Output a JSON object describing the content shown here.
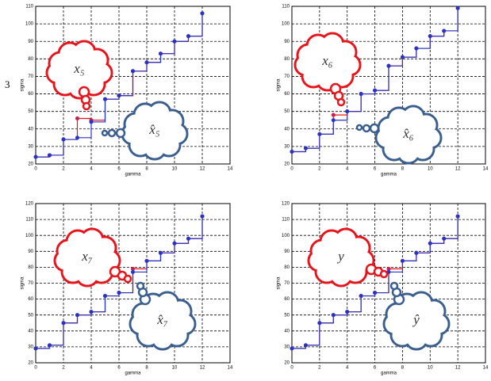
{
  "side_label": "3",
  "chart_data": [
    {
      "type": "step",
      "xlabel": "gamma",
      "ylabel": "sigma",
      "xlim": [
        0,
        14
      ],
      "ylim": [
        20,
        110
      ],
      "xticks": [
        0,
        2,
        4,
        6,
        8,
        10,
        12,
        14
      ],
      "yticks": [
        20,
        30,
        40,
        50,
        60,
        70,
        80,
        90,
        100,
        110
      ],
      "grid": true,
      "x": [
        0,
        1,
        2,
        3,
        4,
        5,
        6,
        7,
        8,
        9,
        10,
        11,
        12
      ],
      "series": [
        {
          "color": "#e8141c",
          "values": [
            24,
            25,
            34,
            46,
            45,
            57,
            59,
            73,
            78,
            83,
            90,
            93,
            106
          ]
        },
        {
          "color": "#2436c8",
          "values": [
            24,
            25,
            34,
            35,
            44,
            57,
            59,
            73,
            78,
            83,
            90,
            93,
            106
          ]
        }
      ],
      "annotations": [
        "x₅",
        "x̂₅"
      ]
    },
    {
      "type": "step",
      "xlabel": "gamma",
      "ylabel": "sigma",
      "xlim": [
        0,
        14
      ],
      "ylim": [
        20,
        110
      ],
      "xticks": [
        0,
        2,
        4,
        6,
        8,
        10,
        12,
        14
      ],
      "yticks": [
        20,
        30,
        40,
        50,
        60,
        70,
        80,
        90,
        100,
        110
      ],
      "grid": true,
      "x": [
        0,
        1,
        2,
        3,
        4,
        5,
        6,
        7,
        8,
        9,
        10,
        11,
        12
      ],
      "series": [
        {
          "color": "#e8141c",
          "values": [
            27,
            29,
            37,
            48,
            50,
            60,
            62,
            76,
            81,
            86,
            93,
            96,
            109
          ]
        },
        {
          "color": "#2436c8",
          "values": [
            27,
            29,
            37,
            45,
            50,
            60,
            62,
            76,
            81,
            86,
            93,
            96,
            109
          ]
        }
      ],
      "annotations": [
        "x₆",
        "x̂₆"
      ]
    },
    {
      "type": "step",
      "xlabel": "gamma",
      "ylabel": "sigma",
      "xlim": [
        0,
        14
      ],
      "ylim": [
        20,
        120
      ],
      "xticks": [
        0,
        2,
        4,
        6,
        8,
        10,
        12,
        14
      ],
      "yticks": [
        20,
        30,
        40,
        50,
        60,
        70,
        80,
        90,
        100,
        110,
        120
      ],
      "grid": true,
      "x": [
        0,
        1,
        2,
        3,
        4,
        5,
        6,
        7,
        8,
        9,
        10,
        11,
        12
      ],
      "series": [
        {
          "color": "#e8141c",
          "values": [
            29,
            31,
            45,
            50,
            52,
            62,
            64,
            79,
            84,
            89,
            95,
            98,
            112
          ]
        },
        {
          "color": "#2436c8",
          "values": [
            29,
            31,
            45,
            50,
            52,
            62,
            64,
            77,
            84,
            89,
            95,
            98,
            112
          ]
        }
      ],
      "annotations": [
        "x₇",
        "x̂₇"
      ]
    },
    {
      "type": "step",
      "xlabel": "gamma",
      "ylabel": "sigma",
      "xlim": [
        0,
        14
      ],
      "ylim": [
        20,
        120
      ],
      "xticks": [
        0,
        2,
        4,
        6,
        8,
        10,
        12,
        14
      ],
      "yticks": [
        20,
        30,
        40,
        50,
        60,
        70,
        80,
        90,
        100,
        110,
        120
      ],
      "grid": true,
      "x": [
        0,
        1,
        2,
        3,
        4,
        5,
        6,
        7,
        8,
        9,
        10,
        11,
        12
      ],
      "series": [
        {
          "color": "#e8141c",
          "values": [
            29,
            31,
            45,
            50,
            52,
            62,
            64,
            79,
            84,
            89,
            95,
            98,
            112
          ]
        },
        {
          "color": "#2436c8",
          "values": [
            29,
            31,
            45,
            50,
            52,
            62,
            64,
            77,
            84,
            89,
            95,
            98,
            112
          ]
        }
      ],
      "annotations": [
        "y",
        "ŷ"
      ]
    }
  ]
}
